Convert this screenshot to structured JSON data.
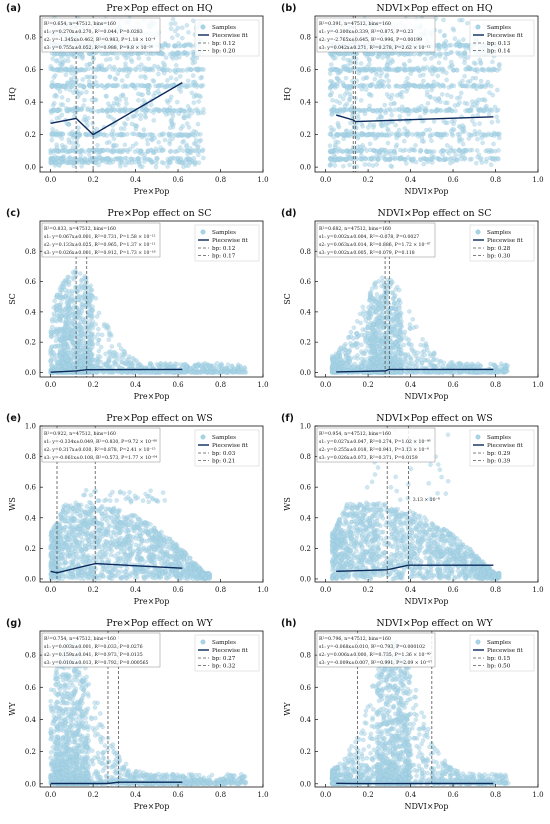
{
  "figure": {
    "colors": {
      "samples": "#a9d4e6",
      "sample_edge": "#7fbcd5",
      "fit": "#0b2a5c",
      "breakpoint": "#555555",
      "axis": "#111111"
    }
  },
  "chart_data": [
    {
      "id": "a",
      "panel_label": "(a)",
      "type": "scatter",
      "title": "Pre×Pop effect on HQ",
      "xlabel": "Pre×Pop",
      "ylabel": "HQ",
      "xlim": [
        -0.05,
        1.0
      ],
      "ylim": [
        -0.03,
        0.93
      ],
      "xticks": [
        0.0,
        0.2,
        0.4,
        0.6,
        0.8,
        1.0
      ],
      "yticks": [
        0.0,
        0.2,
        0.4,
        0.6,
        0.8
      ],
      "stats": [
        "R²=0.654, n=47512, bins=160",
        "s1: y=0.270x±0.270, R²=0.044, P=0.0283",
        "s2: y=-1.345x±0.462, R²=0.983, P=1.18 × 10⁻⁴",
        "s3: y=0.755x±0.052, R²=0.988, P=9.8 × 10⁻²⁸"
      ],
      "legend": {
        "samples": "Samples",
        "fit": "Piecewise fit",
        "bp": [
          "bp: 0.12",
          "bp: 0.20"
        ]
      },
      "breakpoints": [
        0.12,
        0.2
      ],
      "fit": {
        "x": [
          0.0,
          0.12,
          0.2,
          0.62
        ],
        "y": [
          0.27,
          0.3,
          0.2,
          0.52
        ]
      },
      "samples": {
        "kind": "banded",
        "x_range": [
          0.0,
          0.72
        ],
        "bands": [
          0.03,
          0.05,
          0.1,
          0.2,
          0.35,
          0.5,
          0.6,
          0.7,
          0.75
        ],
        "y_max": 0.92
      }
    },
    {
      "id": "b",
      "panel_label": "(b)",
      "type": "scatter",
      "title": "NDVI×Pop effect on HQ",
      "xlabel": "NDVI×Pop",
      "ylabel": "HQ",
      "xlim": [
        -0.05,
        1.0
      ],
      "ylim": [
        -0.03,
        0.93
      ],
      "xticks": [
        0.0,
        0.2,
        0.4,
        0.6,
        0.8,
        1.0
      ],
      "yticks": [
        0.0,
        0.2,
        0.4,
        0.6,
        0.8
      ],
      "stats": [
        "R²=0.391, n=47512, bins=160",
        "s1: y=-0.300x±0.339, R²=0.875, P=0.23",
        "s2: y=-2.765x±0.645, R²=0.996, P=0.00199",
        "s3: y=0.042x±0.271, R²=0.278, P=2.62 × 10⁻¹²"
      ],
      "legend": {
        "samples": "Samples",
        "fit": "Piecewise fit",
        "bp": [
          "bp: 0.13",
          "bp: 0.14"
        ]
      },
      "breakpoints": [
        0.13,
        0.14
      ],
      "fit": {
        "x": [
          0.05,
          0.13,
          0.14,
          0.79
        ],
        "y": [
          0.32,
          0.29,
          0.28,
          0.31
        ]
      },
      "samples": {
        "kind": "banded",
        "x_range": [
          0.02,
          0.82
        ],
        "bands": [
          0.05,
          0.1,
          0.2,
          0.35,
          0.5,
          0.6,
          0.7,
          0.75
        ],
        "y_max": 0.92
      }
    },
    {
      "id": "c",
      "panel_label": "(c)",
      "type": "scatter",
      "title": "Pre×Pop effect on SC",
      "xlabel": "Pre×Pop",
      "ylabel": "SC",
      "xlim": [
        -0.05,
        1.0
      ],
      "ylim": [
        -0.03,
        1.0
      ],
      "xticks": [
        0.0,
        0.2,
        0.4,
        0.6,
        0.8,
        1.0
      ],
      "yticks": [
        0.0,
        0.2,
        0.4,
        0.6,
        0.8
      ],
      "stats": [
        "R²=0.833, n=47512, bins=160",
        "s1: y=0.067x±0.001, R²=0.731, P=1.58 × 10⁻¹²",
        "s2: y=0.133x±0.025, R²=0.965, P=1.37 × 10⁻¹¹",
        "s3: y=0.026x±0.001, R²=0.912, P=1.73 × 10⁻¹⁸"
      ],
      "legend": {
        "samples": "Samples",
        "fit": "Piecewise fit",
        "bp": [
          "bp: 0.12",
          "bp: 0.17"
        ]
      },
      "breakpoints": [
        0.12,
        0.17
      ],
      "fit": {
        "x": [
          0.0,
          0.12,
          0.17,
          0.62
        ],
        "y": [
          0.002,
          0.01,
          0.018,
          0.02
        ]
      },
      "samples": {
        "kind": "decay",
        "x_range": [
          0.0,
          0.92
        ],
        "peak": 0.12,
        "y_top": 0.62
      }
    },
    {
      "id": "d",
      "panel_label": "(d)",
      "type": "scatter",
      "title": "NDVI×Pop effect on SC",
      "xlabel": "NDVI×Pop",
      "ylabel": "SC",
      "xlim": [
        -0.05,
        1.0
      ],
      "ylim": [
        -0.03,
        1.0
      ],
      "xticks": [
        0.0,
        0.2,
        0.4,
        0.6,
        0.8,
        1.0
      ],
      "yticks": [
        0.0,
        0.2,
        0.4,
        0.6,
        0.8
      ],
      "stats": [
        "R²=0.682, n=47512, bins=160",
        "s1: y=0.002x±0.004, R²=-0.078, P=0.0027",
        "s2: y=0.063x±0.014, R²=0.886, P=1.72 × 10⁻⁸⁷",
        "s3: y=0.002x±0.005, R²=0.079, P=0.118"
      ],
      "legend": {
        "samples": "Samples",
        "fit": "Piecewise fit",
        "bp": [
          "bp: 0.28",
          "bp: 0.30"
        ]
      },
      "breakpoints": [
        0.28,
        0.3
      ],
      "fit": {
        "x": [
          0.05,
          0.28,
          0.3,
          0.79
        ],
        "y": [
          0.004,
          0.01,
          0.02,
          0.02
        ]
      },
      "samples": {
        "kind": "decay",
        "x_range": [
          0.03,
          0.86
        ],
        "peak": 0.28,
        "y_top": 0.58
      }
    },
    {
      "id": "e",
      "panel_label": "(e)",
      "type": "scatter",
      "title": "Pre×Pop effect on WS",
      "xlabel": "Pre×Pop",
      "ylabel": "WS",
      "xlim": [
        -0.05,
        1.0
      ],
      "ylim": [
        -0.02,
        1.0
      ],
      "xticks": [
        0.0,
        0.2,
        0.4,
        0.6,
        0.8,
        1.0
      ],
      "yticks": [
        0.0,
        0.2,
        0.4,
        0.6,
        0.8,
        1.0
      ],
      "stats": [
        "R²=0.922, n=47512, bins=160",
        "s1: y=-0.334x±0.049, R²=0.830, P=9.72 × 10⁻⁸⁰",
        "s2: y=0.317x±0.030, R²=0.878, P=2.41 × 10⁻¹⁵",
        "s3: y=-0.061x±0.108, R²=0.573, P=1.77 × 10⁻⁰⁴"
      ],
      "legend": {
        "samples": "Samples",
        "fit": "Piecewise fit",
        "bp": [
          "bp: 0.03",
          "bp: 0.21"
        ]
      },
      "breakpoints": [
        0.03,
        0.21
      ],
      "fit": {
        "x": [
          0.0,
          0.03,
          0.21,
          0.62
        ],
        "y": [
          0.05,
          0.04,
          0.1,
          0.07
        ]
      },
      "samples": {
        "kind": "mound",
        "x_range": [
          0.0,
          0.75
        ],
        "y_top": 0.5,
        "y_extra": 0.58
      }
    },
    {
      "id": "f",
      "panel_label": "(f)",
      "type": "scatter",
      "title": "NDVI×Pop effect on WS",
      "xlabel": "NDVI×Pop",
      "ylabel": "WS",
      "xlim": [
        -0.05,
        1.0
      ],
      "ylim": [
        -0.02,
        1.0
      ],
      "xticks": [
        0.0,
        0.2,
        0.4,
        0.6,
        0.8,
        1.0
      ],
      "yticks": [
        0.0,
        0.2,
        0.4,
        0.6,
        0.8,
        1.0
      ],
      "stats": [
        "R²=0.954, n=47512, bins=160",
        "s1: y=0.027x±0.047, R²=0.274, P=1.02 × 10⁻⁰⁶",
        "s2: y=0.255x±0.018, R²=0.941, P=3.13 × 10⁻⁸",
        "s3: y=0.026x±0.073, R²=0.371, P=0.0159"
      ],
      "legend": {
        "samples": "Samples",
        "fit": "Piecewise fit",
        "bp": [
          "bp: 0.29",
          "bp: 0.39"
        ]
      },
      "breakpoints": [
        0.29,
        0.39
      ],
      "fit": {
        "x": [
          0.05,
          0.29,
          0.39,
          0.79
        ],
        "y": [
          0.05,
          0.06,
          0.09,
          0.09
        ]
      },
      "annotation": {
        "text": "3.13 × 10⁻⁸",
        "x": 0.41,
        "y": 0.51
      },
      "samples": {
        "kind": "mound",
        "x_range": [
          0.03,
          0.82
        ],
        "y_top": 0.5,
        "y_extra": 1.0
      }
    },
    {
      "id": "g",
      "panel_label": "(g)",
      "type": "scatter",
      "title": "Pre×Pop effect on WY",
      "xlabel": "Pre×Pop",
      "ylabel": "WY",
      "xlim": [
        -0.05,
        1.0
      ],
      "ylim": [
        -0.02,
        0.95
      ],
      "xticks": [
        0.0,
        0.2,
        0.4,
        0.6,
        0.8,
        1.0
      ],
      "yticks": [
        0.0,
        0.2,
        0.4,
        0.6,
        0.8
      ],
      "stats": [
        "R²=0.754, n=47512, bins=160",
        "s1: y=0.003x±0.001, R²=0.033, P=0.0276",
        "s2: y=0.159x±0.041, R²=0.973, P=0.0135",
        "s3: y=0.010x±0.013, R²=0.792, P=0.000565"
      ],
      "legend": {
        "samples": "Samples",
        "fit": "Piecewise fit",
        "bp": [
          "bp: 0.27",
          "bp: 0.32"
        ]
      },
      "breakpoints": [
        0.27,
        0.32
      ],
      "fit": {
        "x": [
          0.0,
          0.27,
          0.32,
          0.62
        ],
        "y": [
          0.002,
          0.002,
          0.01,
          0.01
        ]
      },
      "samples": {
        "kind": "decay",
        "x_range": [
          0.0,
          0.92
        ],
        "peak": 0.1,
        "y_top": 0.82
      }
    },
    {
      "id": "h",
      "panel_label": "(h)",
      "type": "scatter",
      "title": "NDVI×Pop effect on WY",
      "xlabel": "NDVI×Pop",
      "ylabel": "WY",
      "xlim": [
        -0.05,
        1.0
      ],
      "ylim": [
        -0.02,
        0.95
      ],
      "xticks": [
        0.0,
        0.2,
        0.4,
        0.6,
        0.8,
        1.0
      ],
      "yticks": [
        0.0,
        0.2,
        0.4,
        0.6,
        0.8
      ],
      "stats": [
        "R²=0.796, n=47512, bins=160",
        "s1: y=-0.068x±0.010, R²=0.793, P=0.000102",
        "s2: y=0.006x±0.000, R²=0.735, P=1.36 × 10⁻⁴⁰",
        "s3: y=-0.009x±0.007, R²=0.991, P=2.09 × 10⁻⁰⁷"
      ],
      "legend": {
        "samples": "Samples",
        "fit": "Piecewise fit",
        "bp": [
          "bp: 0.15",
          "bp: 0.50"
        ]
      },
      "breakpoints": [
        0.15,
        0.5
      ],
      "fit": {
        "x": [
          0.05,
          0.15,
          0.5,
          0.79
        ],
        "y": [
          0.003,
          0.001,
          0.002,
          0.002
        ]
      },
      "samples": {
        "kind": "decay",
        "x_range": [
          0.03,
          0.86
        ],
        "peak": 0.32,
        "y_top": 0.82
      }
    }
  ]
}
